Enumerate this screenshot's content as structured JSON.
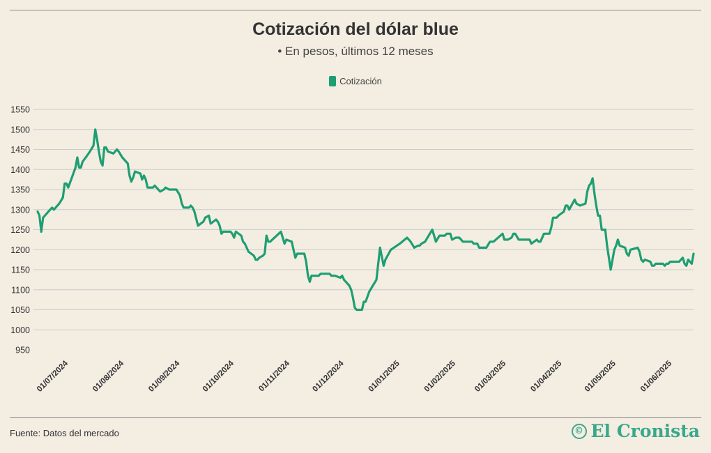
{
  "header": {
    "title": "Cotización del dólar blue",
    "subtitle": "• En pesos, últimos 12 meses"
  },
  "footer": {
    "source": "Fuente: Datos del mercado",
    "logo_text": "El Cronista",
    "logo_icon": "cronista-emblem-icon"
  },
  "colors": {
    "series": "#1e9e72",
    "grid": "#cccccc",
    "background": "#f3ede2",
    "brand": "#3aa88a"
  },
  "chart_data": {
    "type": "line",
    "title": "Cotización del dólar blue",
    "subtitle": "• En pesos, últimos 12 meses",
    "xlabel": "",
    "ylabel": "",
    "grid": true,
    "legend_position": "top-center",
    "ylim": [
      950,
      1550
    ],
    "yticks": [
      950,
      1000,
      1050,
      1100,
      1150,
      1200,
      1250,
      1300,
      1350,
      1400,
      1450,
      1500,
      1550
    ],
    "xlim": [
      "2024-06-14",
      "2025-06-13"
    ],
    "xticks": [
      {
        "date": "2024-07-01",
        "label": "01/07/2024"
      },
      {
        "date": "2024-08-01",
        "label": "01/08/2024"
      },
      {
        "date": "2024-09-01",
        "label": "01/09/2024"
      },
      {
        "date": "2024-10-01",
        "label": "01/10/2024"
      },
      {
        "date": "2024-11-01",
        "label": "01/11/2024"
      },
      {
        "date": "2024-12-01",
        "label": "01/12/2024"
      },
      {
        "date": "2025-01-01",
        "label": "01/01/2025"
      },
      {
        "date": "2025-02-01",
        "label": "01/02/2025"
      },
      {
        "date": "2025-03-01",
        "label": "01/03/2025"
      },
      {
        "date": "2025-04-01",
        "label": "01/04/2025"
      },
      {
        "date": "2025-05-01",
        "label": "01/05/2025"
      },
      {
        "date": "2025-06-01",
        "label": "01/06/2025"
      }
    ],
    "series": [
      {
        "name": "Cotización",
        "color": "#1e9e72",
        "points": [
          [
            "2024-06-14",
            1295
          ],
          [
            "2024-06-15",
            1285
          ],
          [
            "2024-06-16",
            1245
          ],
          [
            "2024-06-17",
            1280
          ],
          [
            "2024-06-20",
            1295
          ],
          [
            "2024-06-22",
            1305
          ],
          [
            "2024-06-23",
            1300
          ],
          [
            "2024-06-26",
            1315
          ],
          [
            "2024-06-28",
            1330
          ],
          [
            "2024-06-29",
            1365
          ],
          [
            "2024-06-30",
            1365
          ],
          [
            "2024-07-01",
            1355
          ],
          [
            "2024-07-03",
            1380
          ],
          [
            "2024-07-05",
            1405
          ],
          [
            "2024-07-06",
            1430
          ],
          [
            "2024-07-07",
            1405
          ],
          [
            "2024-07-08",
            1405
          ],
          [
            "2024-07-09",
            1420
          ],
          [
            "2024-07-11",
            1432
          ],
          [
            "2024-07-13",
            1445
          ],
          [
            "2024-07-15",
            1460
          ],
          [
            "2024-07-16",
            1500
          ],
          [
            "2024-07-17",
            1475
          ],
          [
            "2024-07-18",
            1445
          ],
          [
            "2024-07-19",
            1420
          ],
          [
            "2024-07-20",
            1410
          ],
          [
            "2024-07-21",
            1455
          ],
          [
            "2024-07-22",
            1455
          ],
          [
            "2024-07-23",
            1445
          ],
          [
            "2024-07-26",
            1440
          ],
          [
            "2024-07-28",
            1450
          ],
          [
            "2024-07-29",
            1445
          ],
          [
            "2024-07-31",
            1430
          ],
          [
            "2024-08-03",
            1415
          ],
          [
            "2024-08-04",
            1385
          ],
          [
            "2024-08-05",
            1370
          ],
          [
            "2024-08-06",
            1380
          ],
          [
            "2024-08-07",
            1395
          ],
          [
            "2024-08-10",
            1390
          ],
          [
            "2024-08-11",
            1375
          ],
          [
            "2024-08-12",
            1385
          ],
          [
            "2024-08-13",
            1375
          ],
          [
            "2024-08-14",
            1355
          ],
          [
            "2024-08-17",
            1355
          ],
          [
            "2024-08-18",
            1360
          ],
          [
            "2024-08-21",
            1345
          ],
          [
            "2024-08-23",
            1350
          ],
          [
            "2024-08-24",
            1355
          ],
          [
            "2024-08-26",
            1350
          ],
          [
            "2024-08-30",
            1350
          ],
          [
            "2024-09-01",
            1335
          ],
          [
            "2024-09-02",
            1315
          ],
          [
            "2024-09-03",
            1305
          ],
          [
            "2024-09-06",
            1305
          ],
          [
            "2024-09-07",
            1310
          ],
          [
            "2024-09-08",
            1305
          ],
          [
            "2024-09-09",
            1295
          ],
          [
            "2024-09-11",
            1260
          ],
          [
            "2024-09-14",
            1270
          ],
          [
            "2024-09-15",
            1280
          ],
          [
            "2024-09-17",
            1285
          ],
          [
            "2024-09-18",
            1265
          ],
          [
            "2024-09-21",
            1275
          ],
          [
            "2024-09-22",
            1270
          ],
          [
            "2024-09-23",
            1260
          ],
          [
            "2024-09-24",
            1240
          ],
          [
            "2024-09-25",
            1245
          ],
          [
            "2024-09-29",
            1245
          ],
          [
            "2024-09-30",
            1240
          ],
          [
            "2024-10-01",
            1230
          ],
          [
            "2024-10-02",
            1245
          ],
          [
            "2024-10-05",
            1235
          ],
          [
            "2024-10-06",
            1220
          ],
          [
            "2024-10-07",
            1215
          ],
          [
            "2024-10-09",
            1195
          ],
          [
            "2024-10-12",
            1185
          ],
          [
            "2024-10-13",
            1175
          ],
          [
            "2024-10-14",
            1175
          ],
          [
            "2024-10-15",
            1180
          ],
          [
            "2024-10-17",
            1185
          ],
          [
            "2024-10-18",
            1190
          ],
          [
            "2024-10-19",
            1235
          ],
          [
            "2024-10-20",
            1220
          ],
          [
            "2024-10-21",
            1220
          ],
          [
            "2024-10-27",
            1245
          ],
          [
            "2024-10-29",
            1215
          ],
          [
            "2024-10-30",
            1225
          ],
          [
            "2024-11-02",
            1220
          ],
          [
            "2024-11-04",
            1180
          ],
          [
            "2024-11-05",
            1190
          ],
          [
            "2024-11-07",
            1190
          ],
          [
            "2024-11-09",
            1190
          ],
          [
            "2024-11-10",
            1170
          ],
          [
            "2024-11-11",
            1135
          ],
          [
            "2024-11-12",
            1120
          ],
          [
            "2024-11-13",
            1135
          ],
          [
            "2024-11-17",
            1135
          ],
          [
            "2024-11-18",
            1140
          ],
          [
            "2024-11-23",
            1140
          ],
          [
            "2024-11-24",
            1135
          ],
          [
            "2024-11-26",
            1135
          ],
          [
            "2024-11-29",
            1130
          ],
          [
            "2024-11-30",
            1135
          ],
          [
            "2024-12-01",
            1125
          ],
          [
            "2024-12-03",
            1115
          ],
          [
            "2024-12-04",
            1110
          ],
          [
            "2024-12-05",
            1100
          ],
          [
            "2024-12-06",
            1080
          ],
          [
            "2024-12-07",
            1055
          ],
          [
            "2024-12-08",
            1050
          ],
          [
            "2024-12-11",
            1050
          ],
          [
            "2024-12-12",
            1070
          ],
          [
            "2024-12-13",
            1070
          ],
          [
            "2024-12-15",
            1095
          ],
          [
            "2024-12-17",
            1110
          ],
          [
            "2024-12-19",
            1125
          ],
          [
            "2024-12-21",
            1205
          ],
          [
            "2024-12-23",
            1160
          ],
          [
            "2024-12-24",
            1175
          ],
          [
            "2024-12-27",
            1200
          ],
          [
            "2025-01-01",
            1215
          ],
          [
            "2025-01-05",
            1230
          ],
          [
            "2025-01-07",
            1220
          ],
          [
            "2025-01-09",
            1205
          ],
          [
            "2025-01-11",
            1210
          ],
          [
            "2025-01-12",
            1210
          ],
          [
            "2025-01-13",
            1215
          ],
          [
            "2025-01-15",
            1220
          ],
          [
            "2025-01-17",
            1235
          ],
          [
            "2025-01-19",
            1250
          ],
          [
            "2025-01-21",
            1220
          ],
          [
            "2025-01-23",
            1235
          ],
          [
            "2025-01-26",
            1235
          ],
          [
            "2025-01-27",
            1240
          ],
          [
            "2025-01-29",
            1240
          ],
          [
            "2025-01-30",
            1225
          ],
          [
            "2025-02-01",
            1230
          ],
          [
            "2025-02-03",
            1230
          ],
          [
            "2025-02-05",
            1220
          ],
          [
            "2025-02-10",
            1220
          ],
          [
            "2025-02-11",
            1215
          ],
          [
            "2025-02-13",
            1215
          ],
          [
            "2025-02-14",
            1205
          ],
          [
            "2025-02-18",
            1205
          ],
          [
            "2025-02-20",
            1220
          ],
          [
            "2025-02-22",
            1220
          ],
          [
            "2025-02-27",
            1240
          ],
          [
            "2025-02-28",
            1225
          ],
          [
            "2025-03-02",
            1225
          ],
          [
            "2025-03-04",
            1230
          ],
          [
            "2025-03-05",
            1240
          ],
          [
            "2025-03-06",
            1240
          ],
          [
            "2025-03-08",
            1225
          ],
          [
            "2025-03-14",
            1225
          ],
          [
            "2025-03-15",
            1215
          ],
          [
            "2025-03-18",
            1225
          ],
          [
            "2025-03-19",
            1220
          ],
          [
            "2025-03-20",
            1220
          ],
          [
            "2025-03-22",
            1240
          ],
          [
            "2025-03-25",
            1240
          ],
          [
            "2025-03-26",
            1255
          ],
          [
            "2025-03-27",
            1280
          ],
          [
            "2025-03-29",
            1280
          ],
          [
            "2025-03-30",
            1285
          ],
          [
            "2025-04-02",
            1295
          ],
          [
            "2025-04-03",
            1310
          ],
          [
            "2025-04-04",
            1310
          ],
          [
            "2025-04-05",
            1300
          ],
          [
            "2025-04-08",
            1325
          ],
          [
            "2025-04-09",
            1315
          ],
          [
            "2025-04-11",
            1310
          ],
          [
            "2025-04-14",
            1315
          ],
          [
            "2025-04-15",
            1345
          ],
          [
            "2025-04-16",
            1360
          ],
          [
            "2025-04-17",
            1365
          ],
          [
            "2025-04-18",
            1378
          ],
          [
            "2025-04-19",
            1340
          ],
          [
            "2025-04-20",
            1310
          ],
          [
            "2025-04-21",
            1285
          ],
          [
            "2025-04-22",
            1285
          ],
          [
            "2025-04-23",
            1250
          ],
          [
            "2025-04-25",
            1250
          ],
          [
            "2025-04-26",
            1210
          ],
          [
            "2025-04-27",
            1180
          ],
          [
            "2025-04-28",
            1150
          ],
          [
            "2025-04-29",
            1175
          ],
          [
            "2025-04-30",
            1200
          ],
          [
            "2025-05-01",
            1210
          ],
          [
            "2025-05-02",
            1225
          ],
          [
            "2025-05-03",
            1210
          ],
          [
            "2025-05-06",
            1205
          ],
          [
            "2025-05-07",
            1190
          ],
          [
            "2025-05-08",
            1185
          ],
          [
            "2025-05-09",
            1200
          ],
          [
            "2025-05-13",
            1205
          ],
          [
            "2025-05-14",
            1195
          ],
          [
            "2025-05-15",
            1175
          ],
          [
            "2025-05-16",
            1170
          ],
          [
            "2025-05-17",
            1175
          ],
          [
            "2025-05-20",
            1170
          ],
          [
            "2025-05-21",
            1160
          ],
          [
            "2025-05-22",
            1160
          ],
          [
            "2025-05-23",
            1165
          ],
          [
            "2025-05-27",
            1165
          ],
          [
            "2025-05-28",
            1160
          ],
          [
            "2025-05-29",
            1165
          ],
          [
            "2025-05-30",
            1165
          ],
          [
            "2025-05-31",
            1170
          ],
          [
            "2025-06-05",
            1170
          ],
          [
            "2025-06-06",
            1175
          ],
          [
            "2025-06-07",
            1180
          ],
          [
            "2025-06-08",
            1165
          ],
          [
            "2025-06-09",
            1160
          ],
          [
            "2025-06-10",
            1175
          ],
          [
            "2025-06-12",
            1165
          ],
          [
            "2025-06-13",
            1190
          ]
        ]
      }
    ]
  }
}
